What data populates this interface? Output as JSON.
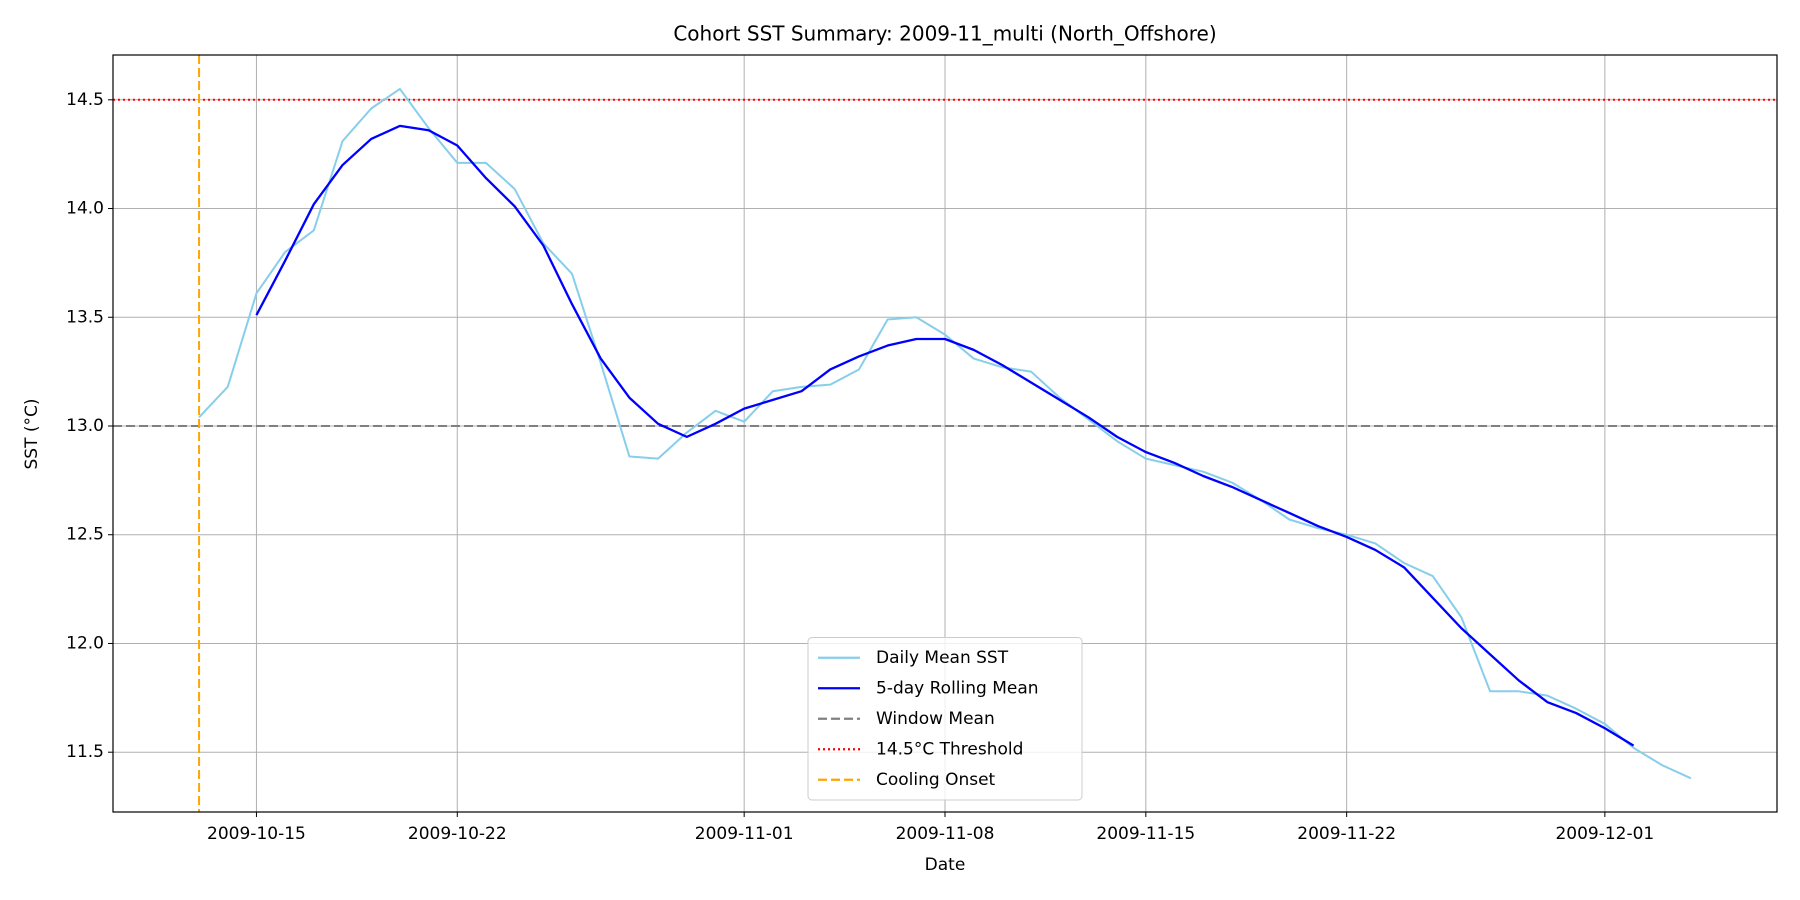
{
  "chart_data": {
    "type": "line",
    "title": "Cohort SST Summary: 2009-11_multi (North_Offshore)",
    "x_label": "Date",
    "y_label": "SST (°C)",
    "x": [
      "2009-10-13",
      "2009-10-14",
      "2009-10-15",
      "2009-10-16",
      "2009-10-17",
      "2009-10-18",
      "2009-10-19",
      "2009-10-20",
      "2009-10-21",
      "2009-10-22",
      "2009-10-23",
      "2009-10-24",
      "2009-10-25",
      "2009-10-26",
      "2009-10-27",
      "2009-10-28",
      "2009-10-29",
      "2009-10-30",
      "2009-10-31",
      "2009-11-01",
      "2009-11-02",
      "2009-11-03",
      "2009-11-04",
      "2009-11-05",
      "2009-11-06",
      "2009-11-07",
      "2009-11-08",
      "2009-11-09",
      "2009-11-10",
      "2009-11-11",
      "2009-11-12",
      "2009-11-13",
      "2009-11-14",
      "2009-11-15",
      "2009-11-16",
      "2009-11-17",
      "2009-11-18",
      "2009-11-19",
      "2009-11-20",
      "2009-11-21",
      "2009-11-22",
      "2009-11-23",
      "2009-11-24",
      "2009-11-25",
      "2009-11-26",
      "2009-11-27",
      "2009-11-28",
      "2009-11-29",
      "2009-11-30",
      "2009-12-01",
      "2009-12-02",
      "2009-12-03",
      "2009-12-04"
    ],
    "series": [
      {
        "name": "Daily Mean SST",
        "color": "#87ceeb",
        "width": 2,
        "values": [
          13.04,
          13.18,
          13.61,
          13.8,
          13.9,
          14.31,
          14.46,
          14.55,
          14.37,
          14.21,
          14.21,
          14.09,
          13.84,
          13.7,
          13.29,
          12.86,
          12.85,
          12.97,
          13.07,
          13.02,
          13.16,
          13.18,
          13.19,
          13.26,
          13.49,
          13.5,
          13.42,
          13.31,
          13.27,
          13.25,
          13.13,
          13.03,
          12.93,
          12.85,
          12.82,
          12.79,
          12.74,
          12.66,
          12.57,
          12.53,
          12.5,
          12.46,
          12.37,
          12.31,
          12.12,
          11.78,
          11.78,
          11.76,
          11.7,
          11.63,
          11.52,
          11.44,
          11.38
        ]
      },
      {
        "name": "5-day Rolling Mean",
        "color": "#0000ff",
        "width": 2.3,
        "values": [
          null,
          null,
          13.51,
          13.76,
          14.02,
          14.2,
          14.32,
          14.38,
          14.36,
          14.29,
          14.14,
          14.01,
          13.83,
          13.56,
          13.31,
          13.13,
          13.01,
          12.95,
          13.01,
          13.08,
          13.12,
          13.16,
          13.26,
          13.32,
          13.37,
          13.4,
          13.4,
          13.35,
          13.28,
          13.2,
          13.12,
          13.04,
          12.95,
          12.88,
          12.83,
          12.77,
          12.72,
          12.66,
          12.6,
          12.54,
          12.49,
          12.43,
          12.35,
          12.21,
          12.07,
          11.95,
          11.83,
          11.73,
          11.68,
          11.61,
          11.53,
          null,
          null
        ]
      }
    ],
    "reference_lines": [
      {
        "name": "Window Mean",
        "orientation": "horizontal",
        "value": 13.0,
        "color": "#808080",
        "style": "dashed"
      },
      {
        "name": "14.5°C Threshold",
        "orientation": "horizontal",
        "value": 14.5,
        "color": "#ff0000",
        "style": "dotted"
      },
      {
        "name": "Cooling Onset",
        "orientation": "vertical",
        "value": "2009-10-13",
        "color": "#ffa500",
        "style": "dashed"
      }
    ],
    "xlim": [
      "2009-10-10",
      "2009-12-07"
    ],
    "xticks": [
      "2009-10-15",
      "2009-10-22",
      "2009-11-01",
      "2009-11-08",
      "2009-11-15",
      "2009-11-22",
      "2009-12-01"
    ],
    "ylim": [
      11.225,
      14.706
    ],
    "yticks": [
      11.5,
      {
        "value": 12,
        "label": "12.0"
      },
      12.5,
      {
        "value": 13,
        "label": "13.0"
      },
      13.5,
      {
        "value": 14,
        "label": "14.0"
      },
      14.5
    ],
    "grid": true,
    "legend": "lower center"
  }
}
